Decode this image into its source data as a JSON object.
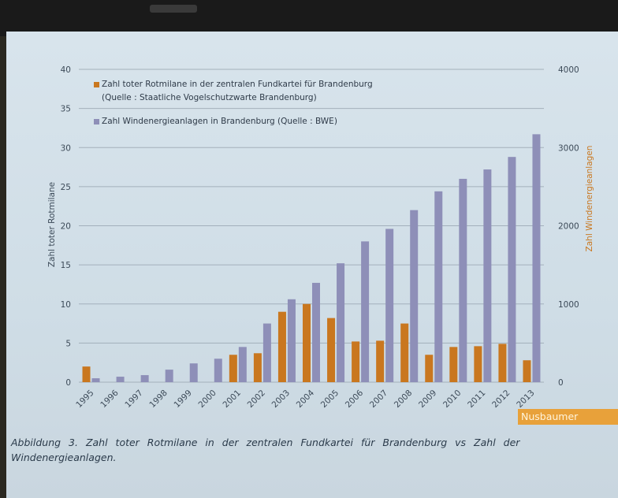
{
  "colors": {
    "rotmilane": "#c9771f",
    "windenergie": "#8e8fb8",
    "grid": "#a3b0bb",
    "axis_text": "#3c4a58",
    "right_axis_label": "#c9771f"
  },
  "caption": "Abbildung 3. Zahl toter Rotmilane in der zentralen Fundkartei für Brandenburg vs Zahl der Windenergieanlagen.",
  "logo_text": "Nusbaumer",
  "chart_data": {
    "type": "bar",
    "categories": [
      "1995",
      "1996",
      "1997",
      "1998",
      "1999",
      "2000",
      "2001",
      "2002",
      "2003",
      "2004",
      "2005",
      "2006",
      "2007",
      "2008",
      "2009",
      "2010",
      "2011",
      "2012",
      "2013"
    ],
    "series": [
      {
        "name": "Zahl toter Rotmilane in der zentralen Fundkartei für Brandenburg (Quelle : Staatliche Vogelschutzwarte Brandenburg)",
        "legend_lines": [
          "Zahl toter Rotmilane in der zentralen Fundkartei für Brandenburg",
          "(Quelle : Staatliche Vogelschutzwarte Brandenburg)"
        ],
        "axis": "left",
        "color": "#c9771f",
        "values": [
          2,
          0,
          0,
          0,
          0,
          0,
          3.5,
          3.7,
          9,
          10,
          8.2,
          5.2,
          5.3,
          7.5,
          3.5,
          4.5,
          4.6,
          4.9,
          2.8
        ]
      },
      {
        "name": "Zahl Windenergieanlagen in Brandenburg (Quelle : BWE)",
        "legend_lines": [
          "Zahl Windenergieanlagen in Brandenburg (Quelle : BWE)"
        ],
        "axis": "right",
        "color": "#8e8fb8",
        "values": [
          50,
          70,
          90,
          160,
          240,
          300,
          450,
          750,
          1060,
          1270,
          1520,
          1800,
          1960,
          2200,
          2440,
          2600,
          2720,
          2880,
          3170
        ]
      }
    ],
    "y_left": {
      "label": "Zahl toter Rotmilane",
      "ticks": [
        0,
        5,
        10,
        15,
        20,
        25,
        30,
        35,
        40
      ],
      "range": [
        0,
        40
      ]
    },
    "y_right": {
      "label": "Zahl Windenergieanlagen",
      "ticks": [
        0,
        1000,
        2000,
        3000,
        4000
      ],
      "range": [
        0,
        4000
      ]
    },
    "grid": true,
    "legend_position": "top-left"
  }
}
